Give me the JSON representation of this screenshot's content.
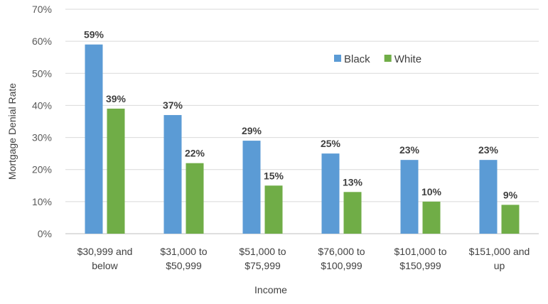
{
  "chart_data": {
    "type": "bar",
    "title": "",
    "xlabel": "Income",
    "ylabel": "Mortgage Denial Rate",
    "ylim": [
      0,
      70
    ],
    "yticks": [
      0,
      10,
      20,
      30,
      40,
      50,
      60,
      70
    ],
    "ytick_labels": [
      "0%",
      "10%",
      "20%",
      "30%",
      "40%",
      "50%",
      "60%",
      "70%"
    ],
    "categories": [
      [
        "$30,999 and",
        "below"
      ],
      [
        "$31,000 to",
        "$50,999"
      ],
      [
        "$51,000 to",
        "$75,999"
      ],
      [
        "$76,000 to",
        "$100,999"
      ],
      [
        "$101,000 to",
        "$150,999"
      ],
      [
        "$151,000 and",
        "up"
      ]
    ],
    "series": [
      {
        "name": "Black",
        "color": "#5b9bd5",
        "values": [
          59,
          37,
          29,
          25,
          23,
          23
        ],
        "labels": [
          "59%",
          "37%",
          "29%",
          "25%",
          "23%",
          "23%"
        ]
      },
      {
        "name": "White",
        "color": "#70ad47",
        "values": [
          39,
          22,
          15,
          13,
          10,
          9
        ],
        "labels": [
          "39%",
          "22%",
          "15%",
          "13%",
          "10%",
          "9%"
        ]
      }
    ],
    "grid": true,
    "legend_position": "top-right"
  }
}
